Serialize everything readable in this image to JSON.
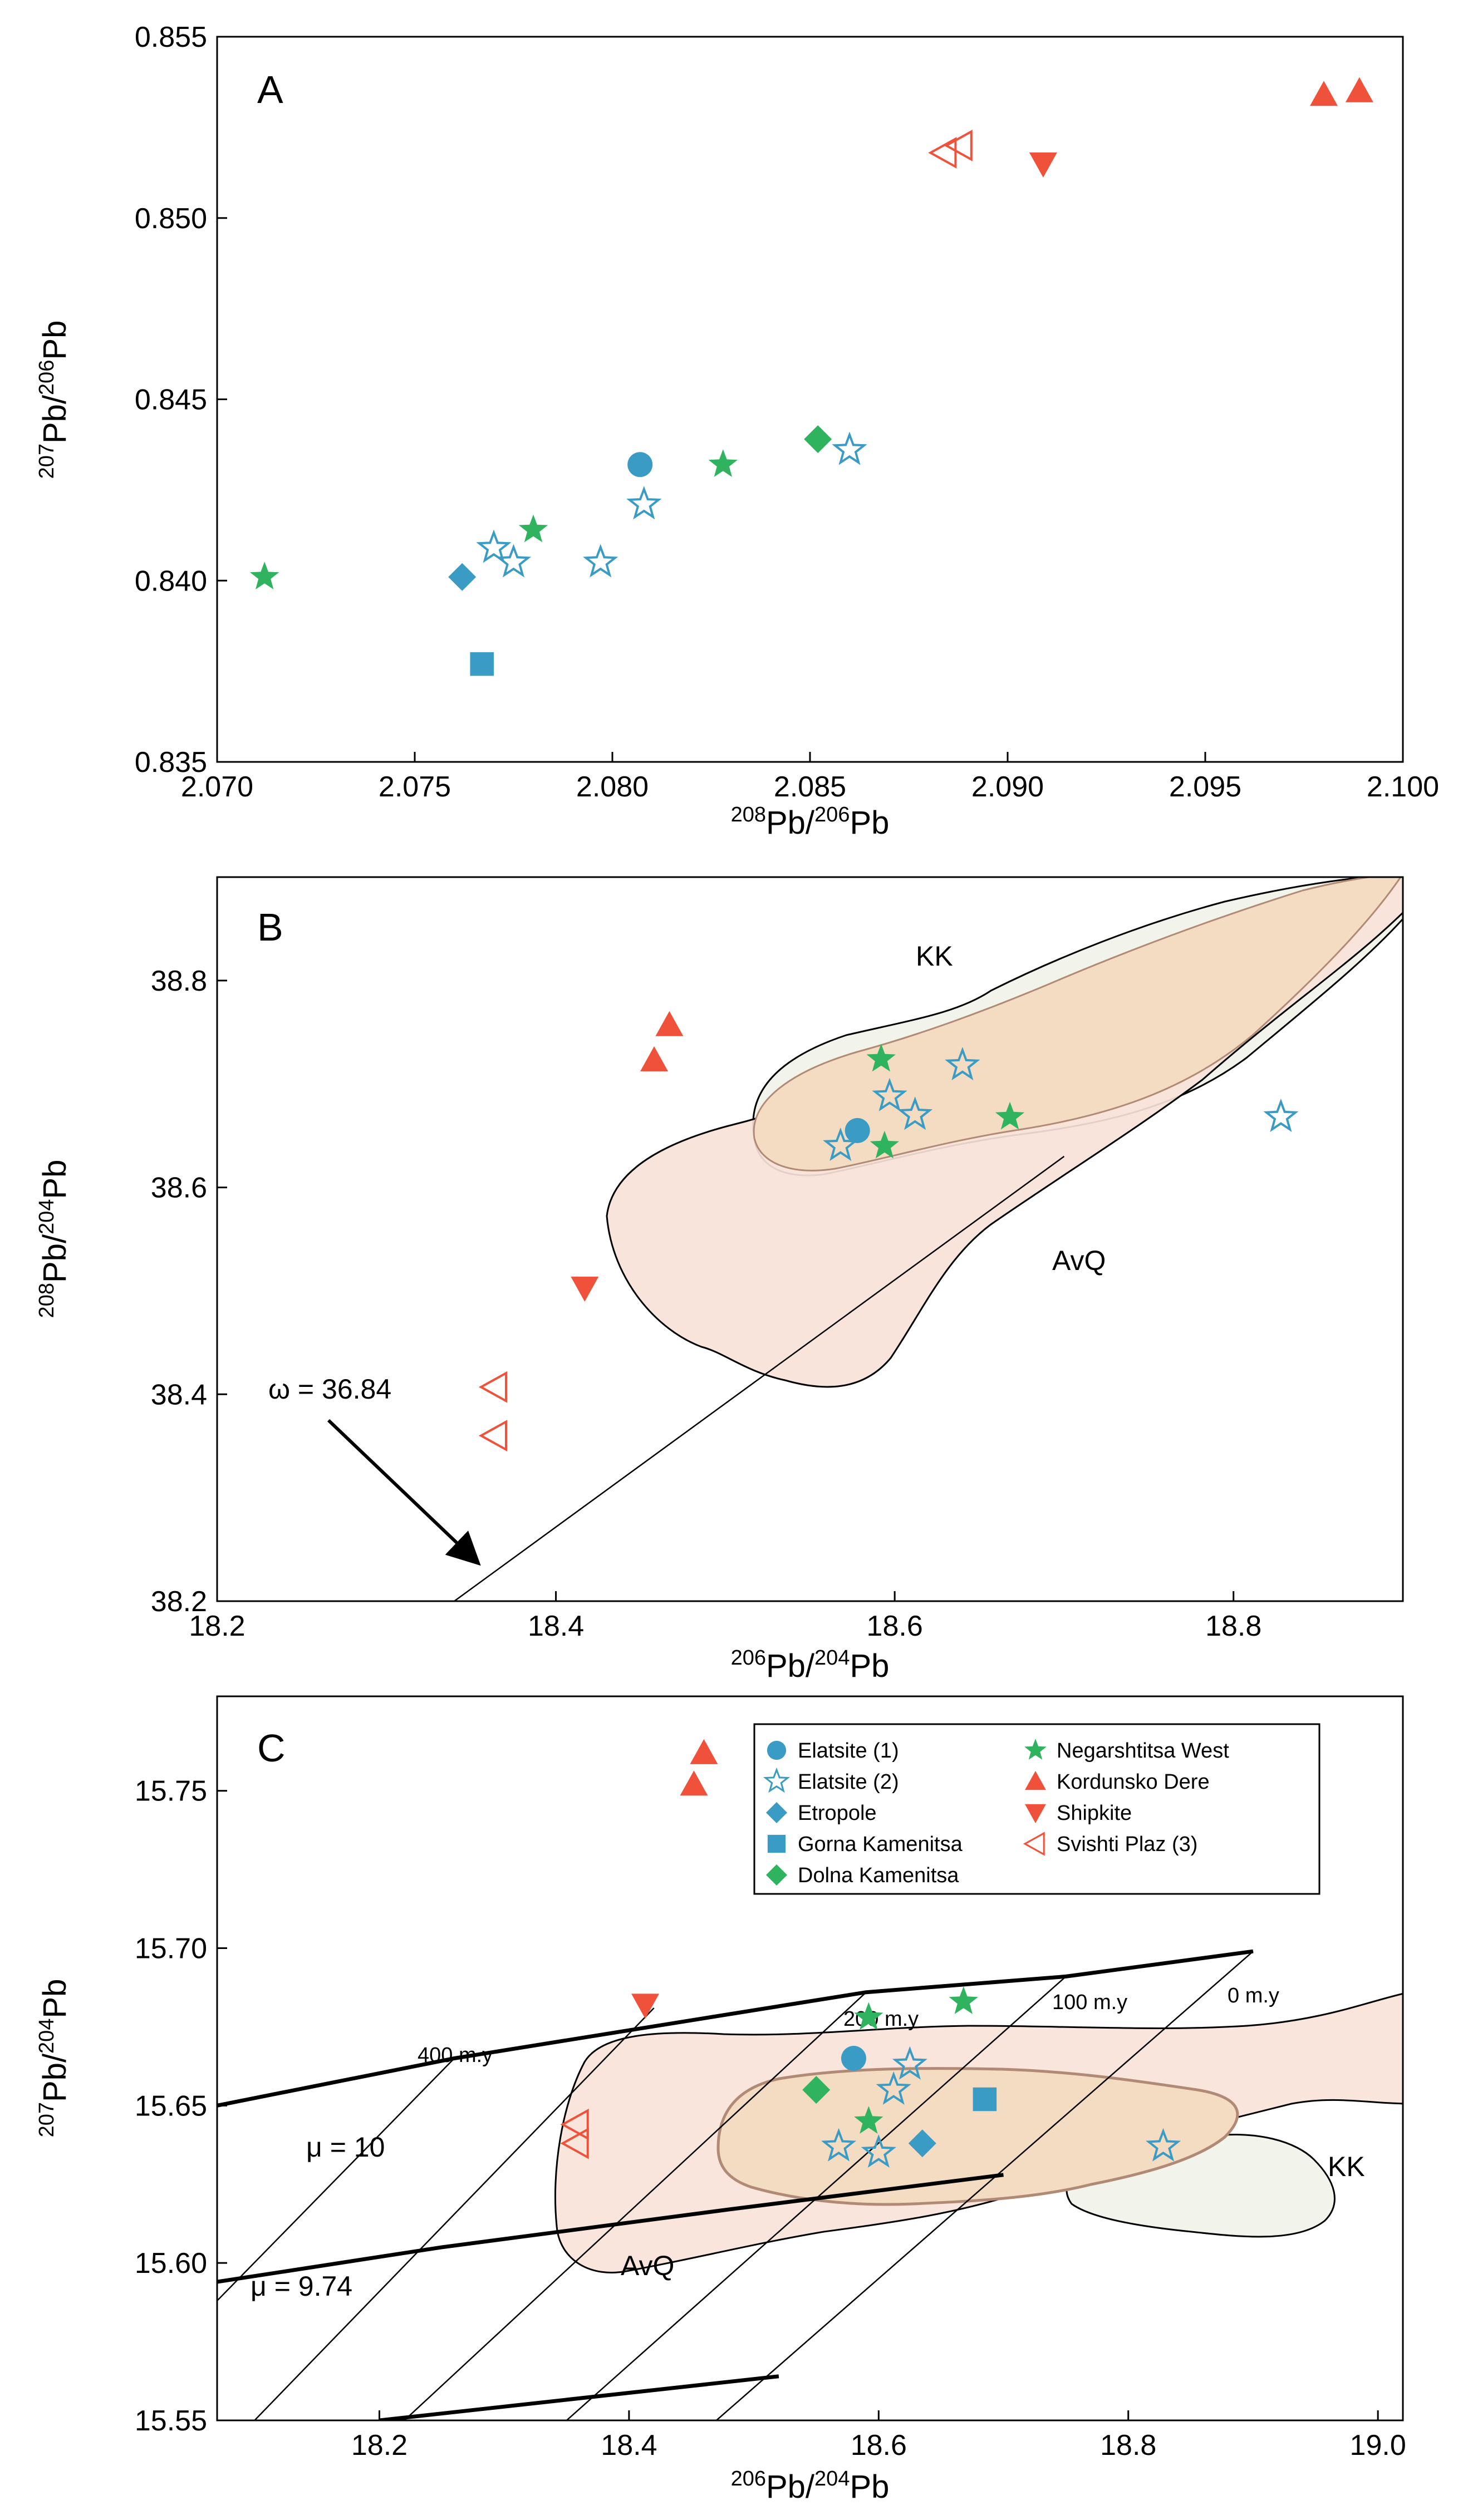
{
  "colors": {
    "blue": "#3a9bc5",
    "green": "#2fb35f",
    "red": "#f0513a",
    "kk_fill": "#f2f4ec",
    "avq_fill": "#f8e2d8",
    "overlap_fill": "#f3dcc2",
    "inner_line": "#b08a74"
  },
  "legend": [
    {
      "label": "Elatsite (1)",
      "marker": "circle",
      "color": "#3a9bc5",
      "filled": true
    },
    {
      "label": "Elatsite (2)",
      "marker": "star",
      "color": "#3a9bc5",
      "filled": false
    },
    {
      "label": "Etropole",
      "marker": "diamond",
      "color": "#3a9bc5",
      "filled": true
    },
    {
      "label": "Gorna Kamenitsa",
      "marker": "square",
      "color": "#3a9bc5",
      "filled": true
    },
    {
      "label": "Dolna Kamenitsa",
      "marker": "diamond",
      "color": "#2fb35f",
      "filled": true
    },
    {
      "label": "Negarshtitsa West",
      "marker": "star",
      "color": "#2fb35f",
      "filled": true
    },
    {
      "label": "Kordunsko Dere",
      "marker": "triangle-up",
      "color": "#f0513a",
      "filled": true
    },
    {
      "label": "Shipkite",
      "marker": "triangle-down",
      "color": "#f0513a",
      "filled": true
    },
    {
      "label": "Svishti Plaz (3)",
      "marker": "triangle-left",
      "color": "#f0513a",
      "filled": false
    }
  ],
  "chart_data": [
    {
      "type": "scatter",
      "panel": "A",
      "xlabel": {
        "main": "Pb/",
        "sup1": "208",
        "sup2": "206",
        "end": "Pb"
      },
      "ylabel": {
        "sup1": "207",
        "main": "Pb/",
        "sup2": "206",
        "end": "Pb"
      },
      "xlim": [
        2.07,
        2.1
      ],
      "ylim": [
        0.835,
        0.855
      ],
      "xticks": [
        "2.070",
        "2.075",
        "2.080",
        "2.085",
        "2.090",
        "2.095",
        "2.100"
      ],
      "yticks": [
        "0.835",
        "0.840",
        "0.845",
        "0.850",
        "0.855"
      ],
      "series": [
        {
          "name": "Elatsite (1)",
          "points": [
            [
              2.0807,
              0.8432
            ]
          ]
        },
        {
          "name": "Elatsite (2)",
          "points": [
            [
              2.077,
              0.8409
            ],
            [
              2.0775,
              0.8405
            ],
            [
              2.0797,
              0.8405
            ],
            [
              2.0808,
              0.8421
            ],
            [
              2.086,
              0.8436
            ]
          ]
        },
        {
          "name": "Etropole",
          "points": [
            [
              2.0762,
              0.8401
            ]
          ]
        },
        {
          "name": "Gorna Kamenitsa",
          "points": [
            [
              2.0767,
              0.8377
            ]
          ]
        },
        {
          "name": "Dolna Kamenitsa",
          "points": [
            [
              2.0852,
              0.8439
            ]
          ]
        },
        {
          "name": "Negarshtitsa West",
          "points": [
            [
              2.0712,
              0.8401
            ],
            [
              2.078,
              0.8414
            ],
            [
              2.0828,
              0.8432
            ]
          ]
        },
        {
          "name": "Kordunsko Dere",
          "points": [
            [
              2.098,
              0.8534
            ],
            [
              2.0989,
              0.8535
            ]
          ]
        },
        {
          "name": "Shipkite",
          "points": [
            [
              2.0909,
              0.8515
            ]
          ]
        },
        {
          "name": "Svishti Plaz (3)",
          "points": [
            [
              2.0884,
              0.8518
            ],
            [
              2.0888,
              0.852
            ]
          ]
        }
      ]
    },
    {
      "type": "scatter",
      "panel": "B",
      "xlabel": {
        "sup1": "206",
        "main": "Pb/",
        "sup2": "204",
        "end": "Pb"
      },
      "ylabel": {
        "sup1": "208",
        "main": "Pb/",
        "sup2": "204",
        "end": "Pb"
      },
      "xlim": [
        18.2,
        18.9
      ],
      "ylim": [
        38.2,
        38.9
      ],
      "xticks": [
        "18.2",
        "18.4",
        "18.6",
        "18.8"
      ],
      "yticks": [
        "38.2",
        "38.4",
        "38.6",
        "38.8"
      ],
      "annotations": {
        "kk": "KK",
        "avq": "AvQ",
        "omega": "ω = 36.84"
      },
      "reference_line": [
        [
          18.34,
          38.2
        ],
        [
          18.7,
          38.63
        ]
      ],
      "series": [
        {
          "name": "Elatsite (1)",
          "points": [
            [
              18.578,
              38.655
            ]
          ]
        },
        {
          "name": "Elatsite (2)",
          "points": [
            [
              18.568,
              38.64
            ],
            [
              18.597,
              38.688
            ],
            [
              18.612,
              38.67
            ],
            [
              18.64,
              38.718
            ],
            [
              18.828,
              38.668
            ]
          ]
        },
        {
          "name": "Negarshtitsa West",
          "points": [
            [
              18.592,
              38.724
            ],
            [
              18.594,
              38.64
            ],
            [
              18.668,
              38.668
            ]
          ]
        },
        {
          "name": "Kordunsko Dere",
          "points": [
            [
              18.458,
              38.723
            ],
            [
              18.467,
              38.757
            ]
          ]
        },
        {
          "name": "Shipkite",
          "points": [
            [
              18.417,
              38.503
            ]
          ]
        },
        {
          "name": "Svishti Plaz (3)",
          "points": [
            [
              18.364,
              38.407
            ],
            [
              18.364,
              38.36
            ]
          ]
        }
      ]
    },
    {
      "type": "scatter",
      "panel": "C",
      "xlabel": {
        "sup1": "206",
        "main": "Pb/",
        "sup2": "204",
        "end": "Pb"
      },
      "ylabel": {
        "sup1": "207",
        "main": "Pb/",
        "sup2": "204",
        "end": "Pb"
      },
      "xlim": [
        18.07,
        19.02
      ],
      "ylim": [
        15.55,
        15.78
      ],
      "xticks": [
        "18.2",
        "18.4",
        "18.6",
        "18.8",
        "19.0"
      ],
      "yticks": [
        "15.55",
        "15.60",
        "15.65",
        "15.70",
        "15.75"
      ],
      "annotations": {
        "kk": "KK",
        "avq": "AvQ",
        "mu10": "μ = 10",
        "mu974": "μ = 9.74",
        "age400": "400 m.y",
        "age200": "200 m.y",
        "age100": "100 m.y",
        "age0": "0 m.y"
      },
      "growth_curves": [
        {
          "name": "μ = 10",
          "points": [
            [
              18.07,
              15.65
            ],
            [
              18.26,
              15.665
            ],
            [
              18.59,
              15.686
            ],
            [
              18.75,
              15.691
            ],
            [
              18.9,
              15.699
            ]
          ]
        },
        {
          "name": "μ = 9.74",
          "points": [
            [
              18.07,
              15.594
            ],
            [
              18.25,
              15.605
            ],
            [
              18.48,
              15.617
            ],
            [
              18.7,
              15.628
            ]
          ]
        },
        {
          "name": "lower",
          "points": [
            [
              18.2,
              15.55
            ],
            [
              18.52,
              15.564
            ]
          ]
        }
      ],
      "isochrons": [
        [
          [
            18.07,
            15.588
          ],
          [
            18.26,
            15.665
          ]
        ],
        [
          [
            18.1,
            15.55
          ],
          [
            18.42,
            15.681
          ]
        ],
        [
          [
            18.22,
            15.55
          ],
          [
            18.59,
            15.686
          ]
        ],
        [
          [
            18.35,
            15.55
          ],
          [
            18.75,
            15.691
          ]
        ],
        [
          [
            18.47,
            15.55
          ],
          [
            18.9,
            15.699
          ]
        ]
      ],
      "series": [
        {
          "name": "Elatsite (1)",
          "points": [
            [
              18.58,
              15.665
            ]
          ]
        },
        {
          "name": "Elatsite (2)",
          "points": [
            [
              18.568,
              15.637
            ],
            [
              18.6,
              15.635
            ],
            [
              18.612,
              15.655
            ],
            [
              18.625,
              15.663
            ],
            [
              18.828,
              15.637
            ]
          ]
        },
        {
          "name": "Etropole",
          "points": [
            [
              18.635,
              15.638
            ]
          ]
        },
        {
          "name": "Gorna Kamenitsa",
          "points": [
            [
              18.685,
              15.652
            ]
          ]
        },
        {
          "name": "Dolna Kamenitsa",
          "points": [
            [
              18.55,
              15.655
            ]
          ]
        },
        {
          "name": "Negarshtitsa West",
          "points": [
            [
              18.592,
              15.678
            ],
            [
              18.592,
              15.645
            ],
            [
              18.668,
              15.683
            ]
          ]
        },
        {
          "name": "Kordunsko Dere",
          "points": [
            [
              18.452,
              15.752
            ],
            [
              18.46,
              15.762
            ]
          ]
        },
        {
          "name": "Shipkite",
          "points": [
            [
              18.413,
              15.682
            ]
          ]
        },
        {
          "name": "Svishti Plaz (3)",
          "points": [
            [
              18.358,
              15.644
            ],
            [
              18.358,
              15.638
            ]
          ]
        }
      ]
    }
  ]
}
